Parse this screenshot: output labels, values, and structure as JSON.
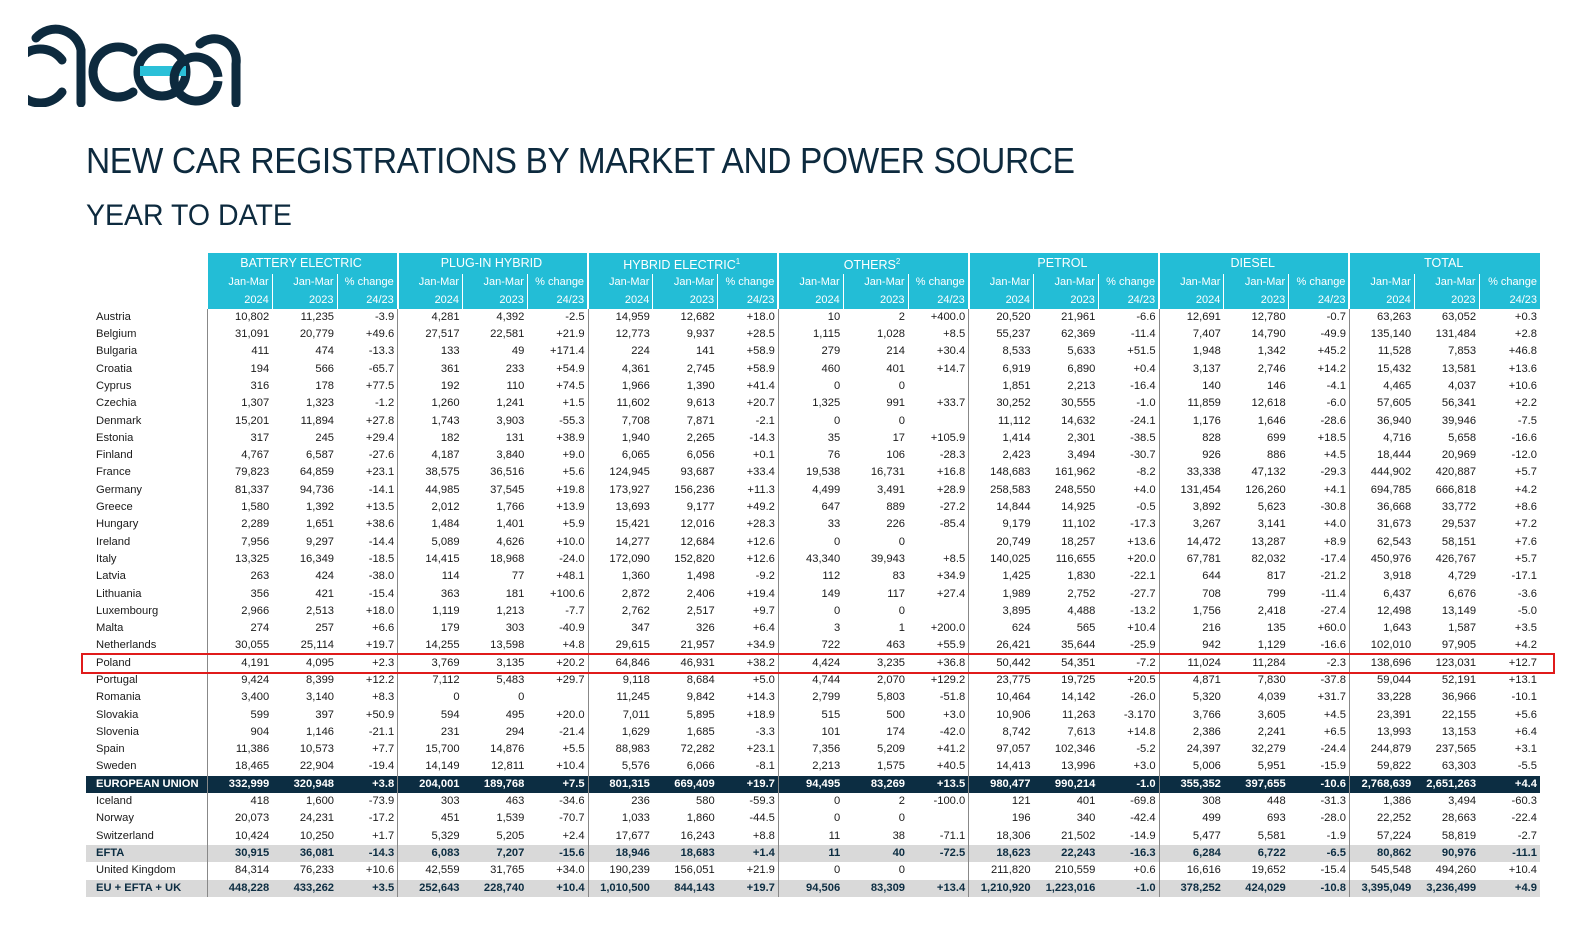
{
  "logo_text": "acea",
  "title": "NEW CAR REGISTRATIONS BY MARKET AND POWER SOURCE",
  "subtitle": "YEAR TO DATE",
  "groups": [
    {
      "label": "BATTERY ELECTRIC",
      "sup": ""
    },
    {
      "label": "PLUG-IN HYBRID",
      "sup": ""
    },
    {
      "label": "HYBRID ELECTRIC",
      "sup": "1"
    },
    {
      "label": "OTHERS",
      "sup": "2"
    },
    {
      "label": "PETROL",
      "sup": ""
    },
    {
      "label": "DIESEL",
      "sup": ""
    },
    {
      "label": "TOTAL",
      "sup": ""
    }
  ],
  "subheaders": {
    "row1": [
      "Jan-Mar",
      "Jan-Mar",
      "% change"
    ],
    "row2": [
      "2024",
      "2023",
      "24/23"
    ]
  },
  "rows": [
    {
      "name": "Austria",
      "type": "country",
      "v": [
        "10,802",
        "11,235",
        "-3.9",
        "4,281",
        "4,392",
        "-2.5",
        "14,959",
        "12,682",
        "+18.0",
        "10",
        "2",
        "+400.0",
        "20,520",
        "21,961",
        "-6.6",
        "12,691",
        "12,780",
        "-0.7",
        "63,263",
        "63,052",
        "+0.3"
      ]
    },
    {
      "name": "Belgium",
      "type": "country",
      "v": [
        "31,091",
        "20,779",
        "+49.6",
        "27,517",
        "22,581",
        "+21.9",
        "12,773",
        "9,937",
        "+28.5",
        "1,115",
        "1,028",
        "+8.5",
        "55,237",
        "62,369",
        "-11.4",
        "7,407",
        "14,790",
        "-49.9",
        "135,140",
        "131,484",
        "+2.8"
      ]
    },
    {
      "name": "Bulgaria",
      "type": "country",
      "v": [
        "411",
        "474",
        "-13.3",
        "133",
        "49",
        "+171.4",
        "224",
        "141",
        "+58.9",
        "279",
        "214",
        "+30.4",
        "8,533",
        "5,633",
        "+51.5",
        "1,948",
        "1,342",
        "+45.2",
        "11,528",
        "7,853",
        "+46.8"
      ]
    },
    {
      "name": "Croatia",
      "type": "country",
      "v": [
        "194",
        "566",
        "-65.7",
        "361",
        "233",
        "+54.9",
        "4,361",
        "2,745",
        "+58.9",
        "460",
        "401",
        "+14.7",
        "6,919",
        "6,890",
        "+0.4",
        "3,137",
        "2,746",
        "+14.2",
        "15,432",
        "13,581",
        "+13.6"
      ]
    },
    {
      "name": "Cyprus",
      "type": "country",
      "v": [
        "316",
        "178",
        "+77.5",
        "192",
        "110",
        "+74.5",
        "1,966",
        "1,390",
        "+41.4",
        "0",
        "0",
        "",
        "1,851",
        "2,213",
        "-16.4",
        "140",
        "146",
        "-4.1",
        "4,465",
        "4,037",
        "+10.6"
      ]
    },
    {
      "name": "Czechia",
      "type": "country",
      "v": [
        "1,307",
        "1,323",
        "-1.2",
        "1,260",
        "1,241",
        "+1.5",
        "11,602",
        "9,613",
        "+20.7",
        "1,325",
        "991",
        "+33.7",
        "30,252",
        "30,555",
        "-1.0",
        "11,859",
        "12,618",
        "-6.0",
        "57,605",
        "56,341",
        "+2.2"
      ]
    },
    {
      "name": "Denmark",
      "type": "country",
      "v": [
        "15,201",
        "11,894",
        "+27.8",
        "1,743",
        "3,903",
        "-55.3",
        "7,708",
        "7,871",
        "-2.1",
        "0",
        "0",
        "",
        "11,112",
        "14,632",
        "-24.1",
        "1,176",
        "1,646",
        "-28.6",
        "36,940",
        "39,946",
        "-7.5"
      ]
    },
    {
      "name": "Estonia",
      "type": "country",
      "v": [
        "317",
        "245",
        "+29.4",
        "182",
        "131",
        "+38.9",
        "1,940",
        "2,265",
        "-14.3",
        "35",
        "17",
        "+105.9",
        "1,414",
        "2,301",
        "-38.5",
        "828",
        "699",
        "+18.5",
        "4,716",
        "5,658",
        "-16.6"
      ]
    },
    {
      "name": "Finland",
      "type": "country",
      "v": [
        "4,767",
        "6,587",
        "-27.6",
        "4,187",
        "3,840",
        "+9.0",
        "6,065",
        "6,056",
        "+0.1",
        "76",
        "106",
        "-28.3",
        "2,423",
        "3,494",
        "-30.7",
        "926",
        "886",
        "+4.5",
        "18,444",
        "20,969",
        "-12.0"
      ]
    },
    {
      "name": "France",
      "type": "country",
      "v": [
        "79,823",
        "64,859",
        "+23.1",
        "38,575",
        "36,516",
        "+5.6",
        "124,945",
        "93,687",
        "+33.4",
        "19,538",
        "16,731",
        "+16.8",
        "148,683",
        "161,962",
        "-8.2",
        "33,338",
        "47,132",
        "-29.3",
        "444,902",
        "420,887",
        "+5.7"
      ]
    },
    {
      "name": "Germany",
      "type": "country",
      "v": [
        "81,337",
        "94,736",
        "-14.1",
        "44,985",
        "37,545",
        "+19.8",
        "173,927",
        "156,236",
        "+11.3",
        "4,499",
        "3,491",
        "+28.9",
        "258,583",
        "248,550",
        "+4.0",
        "131,454",
        "126,260",
        "+4.1",
        "694,785",
        "666,818",
        "+4.2"
      ]
    },
    {
      "name": "Greece",
      "type": "country",
      "v": [
        "1,580",
        "1,392",
        "+13.5",
        "2,012",
        "1,766",
        "+13.9",
        "13,693",
        "9,177",
        "+49.2",
        "647",
        "889",
        "-27.2",
        "14,844",
        "14,925",
        "-0.5",
        "3,892",
        "5,623",
        "-30.8",
        "36,668",
        "33,772",
        "+8.6"
      ]
    },
    {
      "name": "Hungary",
      "type": "country",
      "v": [
        "2,289",
        "1,651",
        "+38.6",
        "1,484",
        "1,401",
        "+5.9",
        "15,421",
        "12,016",
        "+28.3",
        "33",
        "226",
        "-85.4",
        "9,179",
        "11,102",
        "-17.3",
        "3,267",
        "3,141",
        "+4.0",
        "31,673",
        "29,537",
        "+7.2"
      ]
    },
    {
      "name": "Ireland",
      "type": "country",
      "v": [
        "7,956",
        "9,297",
        "-14.4",
        "5,089",
        "4,626",
        "+10.0",
        "14,277",
        "12,684",
        "+12.6",
        "0",
        "0",
        "",
        "20,749",
        "18,257",
        "+13.6",
        "14,472",
        "13,287",
        "+8.9",
        "62,543",
        "58,151",
        "+7.6"
      ]
    },
    {
      "name": "Italy",
      "type": "country",
      "v": [
        "13,325",
        "16,349",
        "-18.5",
        "14,415",
        "18,968",
        "-24.0",
        "172,090",
        "152,820",
        "+12.6",
        "43,340",
        "39,943",
        "+8.5",
        "140,025",
        "116,655",
        "+20.0",
        "67,781",
        "82,032",
        "-17.4",
        "450,976",
        "426,767",
        "+5.7"
      ]
    },
    {
      "name": "Latvia",
      "type": "country",
      "v": [
        "263",
        "424",
        "-38.0",
        "114",
        "77",
        "+48.1",
        "1,360",
        "1,498",
        "-9.2",
        "112",
        "83",
        "+34.9",
        "1,425",
        "1,830",
        "-22.1",
        "644",
        "817",
        "-21.2",
        "3,918",
        "4,729",
        "-17.1"
      ]
    },
    {
      "name": "Lithuania",
      "type": "country",
      "v": [
        "356",
        "421",
        "-15.4",
        "363",
        "181",
        "+100.6",
        "2,872",
        "2,406",
        "+19.4",
        "149",
        "117",
        "+27.4",
        "1,989",
        "2,752",
        "-27.7",
        "708",
        "799",
        "-11.4",
        "6,437",
        "6,676",
        "-3.6"
      ]
    },
    {
      "name": "Luxembourg",
      "type": "country",
      "v": [
        "2,966",
        "2,513",
        "+18.0",
        "1,119",
        "1,213",
        "-7.7",
        "2,762",
        "2,517",
        "+9.7",
        "0",
        "0",
        "",
        "3,895",
        "4,488",
        "-13.2",
        "1,756",
        "2,418",
        "-27.4",
        "12,498",
        "13,149",
        "-5.0"
      ]
    },
    {
      "name": "Malta",
      "type": "country",
      "v": [
        "274",
        "257",
        "+6.6",
        "179",
        "303",
        "-40.9",
        "347",
        "326",
        "+6.4",
        "3",
        "1",
        "+200.0",
        "624",
        "565",
        "+10.4",
        "216",
        "135",
        "+60.0",
        "1,643",
        "1,587",
        "+3.5"
      ]
    },
    {
      "name": "Netherlands",
      "type": "country",
      "v": [
        "30,055",
        "25,114",
        "+19.7",
        "14,255",
        "13,598",
        "+4.8",
        "29,615",
        "21,957",
        "+34.9",
        "722",
        "463",
        "+55.9",
        "26,421",
        "35,644",
        "-25.9",
        "942",
        "1,129",
        "-16.6",
        "102,010",
        "97,905",
        "+4.2"
      ]
    },
    {
      "name": "Poland",
      "type": "country",
      "v": [
        "4,191",
        "4,095",
        "+2.3",
        "3,769",
        "3,135",
        "+20.2",
        "64,846",
        "46,931",
        "+38.2",
        "4,424",
        "3,235",
        "+36.8",
        "50,442",
        "54,351",
        "-7.2",
        "11,024",
        "11,284",
        "-2.3",
        "138,696",
        "123,031",
        "+12.7"
      ]
    },
    {
      "name": "Portugal",
      "type": "country",
      "v": [
        "9,424",
        "8,399",
        "+12.2",
        "7,112",
        "5,483",
        "+29.7",
        "9,118",
        "8,684",
        "+5.0",
        "4,744",
        "2,070",
        "+129.2",
        "23,775",
        "19,725",
        "+20.5",
        "4,871",
        "7,830",
        "-37.8",
        "59,044",
        "52,191",
        "+13.1"
      ]
    },
    {
      "name": "Romania",
      "type": "country",
      "v": [
        "3,400",
        "3,140",
        "+8.3",
        "0",
        "0",
        "",
        "11,245",
        "9,842",
        "+14.3",
        "2,799",
        "5,803",
        "-51.8",
        "10,464",
        "14,142",
        "-26.0",
        "5,320",
        "4,039",
        "+31.7",
        "33,228",
        "36,966",
        "-10.1"
      ]
    },
    {
      "name": "Slovakia",
      "type": "country",
      "v": [
        "599",
        "397",
        "+50.9",
        "594",
        "495",
        "+20.0",
        "7,011",
        "5,895",
        "+18.9",
        "515",
        "500",
        "+3.0",
        "10,906",
        "11,263",
        "-3.170",
        "3,766",
        "3,605",
        "+4.5",
        "23,391",
        "22,155",
        "+5.6"
      ]
    },
    {
      "name": "Slovenia",
      "type": "country",
      "v": [
        "904",
        "1,146",
        "-21.1",
        "231",
        "294",
        "-21.4",
        "1,629",
        "1,685",
        "-3.3",
        "101",
        "174",
        "-42.0",
        "8,742",
        "7,613",
        "+14.8",
        "2,386",
        "2,241",
        "+6.5",
        "13,993",
        "13,153",
        "+6.4"
      ]
    },
    {
      "name": "Spain",
      "type": "country",
      "v": [
        "11,386",
        "10,573",
        "+7.7",
        "15,700",
        "14,876",
        "+5.5",
        "88,983",
        "72,282",
        "+23.1",
        "7,356",
        "5,209",
        "+41.2",
        "97,057",
        "102,346",
        "-5.2",
        "24,397",
        "32,279",
        "-24.4",
        "244,879",
        "237,565",
        "+3.1"
      ]
    },
    {
      "name": "Sweden",
      "type": "country",
      "v": [
        "18,465",
        "22,904",
        "-19.4",
        "14,149",
        "12,811",
        "+10.4",
        "5,576",
        "6,066",
        "-8.1",
        "2,213",
        "1,575",
        "+40.5",
        "14,413",
        "13,996",
        "+3.0",
        "5,006",
        "5,951",
        "-15.9",
        "59,822",
        "63,303",
        "-5.5"
      ]
    },
    {
      "name": "EUROPEAN UNION",
      "type": "eu",
      "v": [
        "332,999",
        "320,948",
        "+3.8",
        "204,001",
        "189,768",
        "+7.5",
        "801,315",
        "669,409",
        "+19.7",
        "94,495",
        "83,269",
        "+13.5",
        "980,477",
        "990,214",
        "-1.0",
        "355,352",
        "397,655",
        "-10.6",
        "2,768,639",
        "2,651,263",
        "+4.4"
      ]
    },
    {
      "name": "Iceland",
      "type": "country",
      "v": [
        "418",
        "1,600",
        "-73.9",
        "303",
        "463",
        "-34.6",
        "236",
        "580",
        "-59.3",
        "0",
        "2",
        "-100.0",
        "121",
        "401",
        "-69.8",
        "308",
        "448",
        "-31.3",
        "1,386",
        "3,494",
        "-60.3"
      ]
    },
    {
      "name": "Norway",
      "type": "country",
      "v": [
        "20,073",
        "24,231",
        "-17.2",
        "451",
        "1,539",
        "-70.7",
        "1,033",
        "1,860",
        "-44.5",
        "0",
        "0",
        "",
        "196",
        "340",
        "-42.4",
        "499",
        "693",
        "-28.0",
        "22,252",
        "28,663",
        "-22.4"
      ]
    },
    {
      "name": "Switzerland",
      "type": "country",
      "v": [
        "10,424",
        "10,250",
        "+1.7",
        "5,329",
        "5,205",
        "+2.4",
        "17,677",
        "16,243",
        "+8.8",
        "11",
        "38",
        "-71.1",
        "18,306",
        "21,502",
        "-14.9",
        "5,477",
        "5,581",
        "-1.9",
        "57,224",
        "58,819",
        "-2.7"
      ]
    },
    {
      "name": "EFTA",
      "type": "efta",
      "v": [
        "30,915",
        "36,081",
        "-14.3",
        "6,083",
        "7,207",
        "-15.6",
        "18,946",
        "18,683",
        "+1.4",
        "11",
        "40",
        "-72.5",
        "18,623",
        "22,243",
        "-16.3",
        "6,284",
        "6,722",
        "-6.5",
        "80,862",
        "90,976",
        "-11.1"
      ]
    },
    {
      "name": "United Kingdom",
      "type": "uk",
      "v": [
        "84,314",
        "76,233",
        "+10.6",
        "42,559",
        "31,765",
        "+34.0",
        "190,239",
        "156,051",
        "+21.9",
        "0",
        "0",
        "",
        "211,820",
        "210,559",
        "+0.6",
        "16,616",
        "19,652",
        "-15.4",
        "545,548",
        "494,260",
        "+10.4"
      ]
    },
    {
      "name": "EU + EFTA + UK",
      "type": "total",
      "v": [
        "448,228",
        "433,262",
        "+3.5",
        "252,643",
        "228,740",
        "+10.4",
        "1,010,500",
        "844,143",
        "+19.7",
        "94,506",
        "83,309",
        "+13.4",
        "1,210,920",
        "1,223,016",
        "-1.0",
        "378,252",
        "424,029",
        "-10.8",
        "3,395,049",
        "3,236,499",
        "+4.9"
      ]
    }
  ],
  "highlighted_row": "Poland",
  "colors": {
    "header_bg": "#23bdd6",
    "eu_row_bg": "#0c2d42",
    "subtotal_bg": "#d9d9d9",
    "highlight_border": "#e01b1b",
    "logo": "#0d2a3e",
    "logo_accent": "#2bc0d8"
  }
}
